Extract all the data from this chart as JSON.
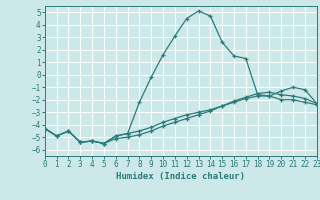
{
  "title": "",
  "xlabel": "Humidex (Indice chaleur)",
  "ylabel": "",
  "bg_color": "#cce8e8",
  "grid_color": "#ffffff",
  "line_color": "#2d7a7a",
  "xlim": [
    0,
    23
  ],
  "ylim": [
    -6.5,
    5.5
  ],
  "xticks": [
    0,
    1,
    2,
    3,
    4,
    5,
    6,
    7,
    8,
    9,
    10,
    11,
    12,
    13,
    14,
    15,
    16,
    17,
    18,
    19,
    20,
    21,
    22,
    23
  ],
  "yticks": [
    -6,
    -5,
    -4,
    -3,
    -2,
    -1,
    0,
    1,
    2,
    3,
    4,
    5
  ],
  "line1_x": [
    0,
    1,
    2,
    3,
    4,
    5,
    6,
    7,
    8,
    9,
    10,
    11,
    12,
    13,
    14,
    15,
    16,
    17,
    18,
    19,
    20,
    21,
    22,
    23
  ],
  "line1_y": [
    -4.3,
    -4.9,
    -4.5,
    -5.4,
    -5.3,
    -5.5,
    -4.9,
    -4.7,
    -2.2,
    -0.2,
    1.6,
    3.1,
    4.5,
    5.1,
    4.7,
    2.6,
    1.5,
    1.3,
    -1.6,
    -1.7,
    -1.3,
    -1.0,
    -1.2,
    -2.3
  ],
  "line2_x": [
    0,
    1,
    2,
    3,
    4,
    5,
    6,
    7,
    8,
    9,
    10,
    11,
    12,
    13,
    14,
    15,
    16,
    17,
    18,
    19,
    20,
    21,
    22,
    23
  ],
  "line2_y": [
    -4.3,
    -4.9,
    -4.5,
    -5.4,
    -5.3,
    -5.5,
    -4.9,
    -4.7,
    -4.5,
    -4.2,
    -3.8,
    -3.5,
    -3.2,
    -3.0,
    -2.8,
    -2.5,
    -2.2,
    -1.9,
    -1.7,
    -1.7,
    -2.0,
    -2.0,
    -2.2,
    -2.4
  ],
  "line3_x": [
    0,
    1,
    2,
    3,
    4,
    5,
    6,
    7,
    8,
    9,
    10,
    11,
    12,
    13,
    14,
    15,
    16,
    17,
    18,
    19,
    20,
    21,
    22,
    23
  ],
  "line3_y": [
    -4.3,
    -4.9,
    -4.5,
    -5.4,
    -5.3,
    -5.5,
    -5.1,
    -5.0,
    -4.8,
    -4.5,
    -4.1,
    -3.8,
    -3.5,
    -3.2,
    -2.9,
    -2.5,
    -2.1,
    -1.8,
    -1.5,
    -1.4,
    -1.6,
    -1.7,
    -1.9,
    -2.3
  ]
}
